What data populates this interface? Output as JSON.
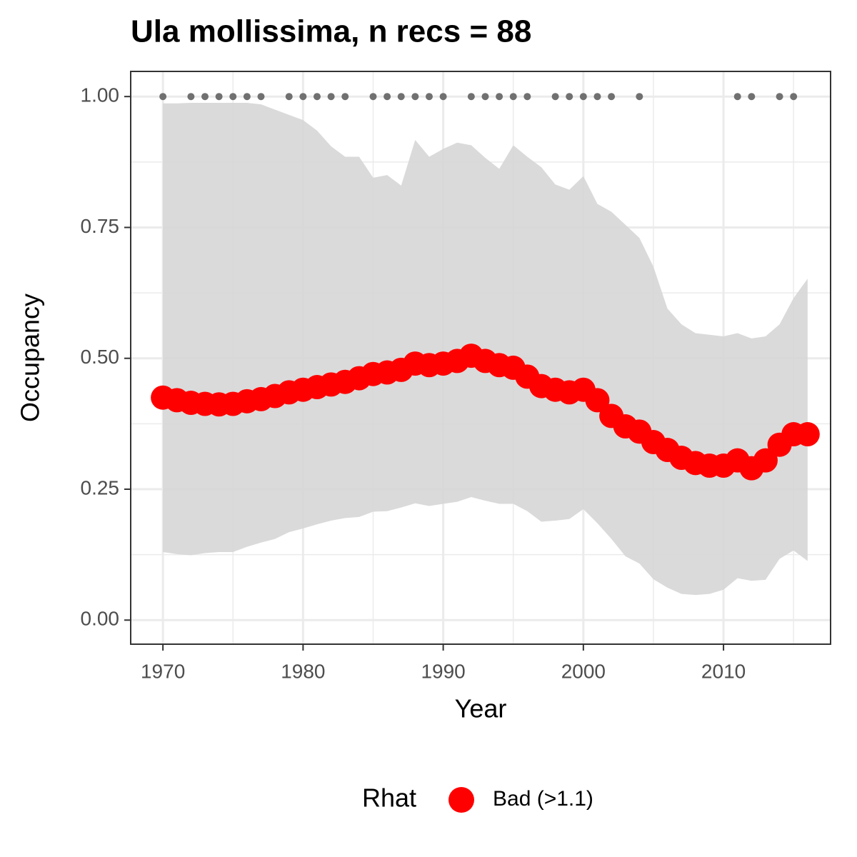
{
  "chart_data": {
    "type": "line",
    "title": "Ula mollissima, n recs = 88",
    "x_label": "Year",
    "y_label": "Occupancy",
    "legend_title": "Rhat",
    "x": [
      1970,
      1971,
      1972,
      1973,
      1974,
      1975,
      1976,
      1977,
      1978,
      1979,
      1980,
      1981,
      1982,
      1983,
      1984,
      1985,
      1986,
      1987,
      1988,
      1989,
      1990,
      1991,
      1992,
      1993,
      1994,
      1995,
      1996,
      1997,
      1998,
      1999,
      2000,
      2001,
      2002,
      2003,
      2004,
      2005,
      2006,
      2007,
      2008,
      2009,
      2010,
      2011,
      2012,
      2013,
      2014,
      2015,
      2016
    ],
    "series": [
      {
        "name": "Bad (>1.1)",
        "color": "#ff0000",
        "values": [
          0.425,
          0.42,
          0.415,
          0.413,
          0.412,
          0.413,
          0.418,
          0.422,
          0.428,
          0.435,
          0.44,
          0.445,
          0.45,
          0.455,
          0.462,
          0.47,
          0.473,
          0.478,
          0.49,
          0.487,
          0.49,
          0.495,
          0.505,
          0.495,
          0.487,
          0.482,
          0.465,
          0.447,
          0.44,
          0.435,
          0.44,
          0.42,
          0.39,
          0.37,
          0.36,
          0.34,
          0.325,
          0.31,
          0.3,
          0.295,
          0.295,
          0.305,
          0.29,
          0.305,
          0.335,
          0.355,
          0.355
        ]
      }
    ],
    "band": {
      "color": "#d6d6d6",
      "upper": [
        0.987,
        0.987,
        0.988,
        0.988,
        0.988,
        0.988,
        0.988,
        0.985,
        0.975,
        0.965,
        0.955,
        0.935,
        0.905,
        0.885,
        0.885,
        0.845,
        0.85,
        0.83,
        0.917,
        0.885,
        0.9,
        0.912,
        0.907,
        0.883,
        0.862,
        0.907,
        0.885,
        0.865,
        0.832,
        0.822,
        0.848,
        0.795,
        0.78,
        0.755,
        0.73,
        0.675,
        0.595,
        0.565,
        0.548,
        0.545,
        0.542,
        0.548,
        0.538,
        0.542,
        0.565,
        0.615,
        0.652
      ],
      "lower": [
        0.13,
        0.126,
        0.124,
        0.128,
        0.13,
        0.13,
        0.14,
        0.148,
        0.155,
        0.168,
        0.175,
        0.183,
        0.19,
        0.195,
        0.197,
        0.207,
        0.208,
        0.215,
        0.223,
        0.218,
        0.222,
        0.226,
        0.235,
        0.228,
        0.222,
        0.222,
        0.208,
        0.188,
        0.19,
        0.193,
        0.212,
        0.185,
        0.155,
        0.122,
        0.108,
        0.078,
        0.062,
        0.05,
        0.048,
        0.05,
        0.058,
        0.08,
        0.075,
        0.077,
        0.117,
        0.133,
        0.113
      ]
    },
    "records": {
      "color": "#707070",
      "x": [
        1970,
        1972,
        1973,
        1974,
        1975,
        1976,
        1977,
        1979,
        1980,
        1981,
        1982,
        1983,
        1985,
        1986,
        1987,
        1988,
        1989,
        1990,
        1992,
        1993,
        1994,
        1995,
        1996,
        1998,
        1999,
        2000,
        2001,
        2002,
        2004,
        2011,
        2012,
        2014,
        2015
      ],
      "values": [
        1,
        1,
        1,
        1,
        1,
        1,
        1,
        1,
        1,
        1,
        1,
        1,
        1,
        1,
        1,
        1,
        1,
        1,
        1,
        1,
        1,
        1,
        1,
        1,
        1,
        1,
        1,
        1,
        1,
        1,
        1,
        1,
        1
      ]
    },
    "xlim": [
      1967.7,
      2017.64
    ],
    "ylim": [
      -0.046,
      1.048
    ],
    "xticks": [
      1970,
      1980,
      1990,
      2000,
      2010
    ],
    "yticks": [
      {
        "value": 0,
        "label": "0.00"
      },
      {
        "value": 0.25,
        "label": "0.25"
      },
      {
        "value": 0.5,
        "label": "0.50"
      },
      {
        "value": 0.75,
        "label": "0.75"
      },
      {
        "value": 1,
        "label": "1.00"
      }
    ],
    "x_minor_ticks": [
      1975,
      1985,
      1995,
      2005,
      2015
    ],
    "y_minor_ticks": [
      0.125,
      0.375,
      0.625,
      0.875
    ],
    "grid": true
  }
}
